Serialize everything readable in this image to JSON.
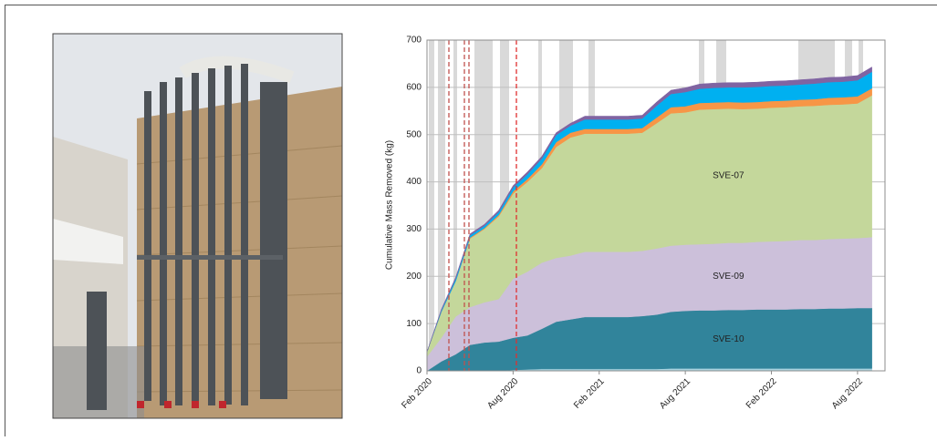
{
  "chart_data": {
    "type": "stacked-area",
    "y_label": "Cumulative Mass Removed (kg)",
    "categories": [
      "Feb 2020",
      null,
      null,
      null,
      null,
      null,
      "Aug 2020",
      null,
      null,
      null,
      null,
      null,
      "Feb 2021",
      null,
      null,
      null,
      null,
      null,
      "Aug 2021",
      null,
      null,
      null,
      null,
      null,
      "Feb 2022",
      null,
      null,
      null,
      null,
      null,
      "Aug 2022",
      null
    ],
    "ylim": [
      0,
      700
    ],
    "yticks": [
      0,
      100,
      200,
      300,
      400,
      500,
      600,
      700
    ],
    "grid": true,
    "series": [
      {
        "color": "#a9d4e0",
        "values": [
          0,
          0,
          0,
          0,
          0,
          0,
          2,
          3,
          4,
          4,
          4,
          4,
          4,
          4,
          4,
          4,
          4,
          5,
          5,
          5,
          5,
          5,
          5,
          5,
          5,
          5,
          5,
          5,
          5,
          5,
          5,
          5
        ]
      },
      {
        "name": "SVE-10",
        "color": "#31849b",
        "values": [
          0,
          20,
          35,
          55,
          60,
          62,
          68,
          72,
          85,
          100,
          105,
          110,
          110,
          110,
          110,
          112,
          115,
          120,
          122,
          123,
          123,
          124,
          124,
          125,
          125,
          125,
          126,
          126,
          127,
          127,
          128,
          128
        ]
      },
      {
        "name": "SVE-09",
        "color": "#ccc0da",
        "values": [
          30,
          50,
          80,
          80,
          85,
          90,
          125,
          135,
          140,
          135,
          135,
          138,
          138,
          138,
          138,
          138,
          140,
          140,
          140,
          140,
          141,
          142,
          142,
          143,
          144,
          145,
          146,
          146,
          147,
          148,
          148,
          150
        ]
      },
      {
        "name": "SVE-07",
        "color": "#c4d79b",
        "values": [
          10,
          55,
          75,
          145,
          155,
          175,
          180,
          190,
          200,
          235,
          250,
          250,
          250,
          250,
          250,
          250,
          265,
          280,
          280,
          285,
          285,
          284,
          283,
          282,
          283,
          283,
          283,
          284,
          284,
          284,
          285,
          300
        ]
      },
      {
        "color": "#f79646",
        "values": [
          0,
          0,
          0,
          2,
          2,
          3,
          5,
          6,
          8,
          10,
          10,
          10,
          10,
          10,
          10,
          10,
          12,
          13,
          13,
          14,
          14,
          14,
          14,
          14,
          14,
          14,
          14,
          14,
          15,
          15,
          15,
          15
        ]
      },
      {
        "color": "#00b0f0",
        "values": [
          0,
          3,
          5,
          5,
          5,
          6,
          8,
          10,
          12,
          15,
          15,
          20,
          20,
          20,
          20,
          20,
          25,
          28,
          30,
          30,
          31,
          31,
          32,
          32,
          32,
          32,
          32,
          33,
          33,
          33,
          34,
          35
        ]
      },
      {
        "color": "#8064a2",
        "values": [
          0,
          2,
          3,
          3,
          3,
          4,
          4,
          5,
          5,
          5,
          5,
          7,
          7,
          7,
          7,
          7,
          8,
          8,
          9,
          10,
          10,
          10,
          10,
          10,
          10,
          10,
          10,
          10,
          10,
          10,
          10,
          10
        ]
      }
    ]
  }
}
